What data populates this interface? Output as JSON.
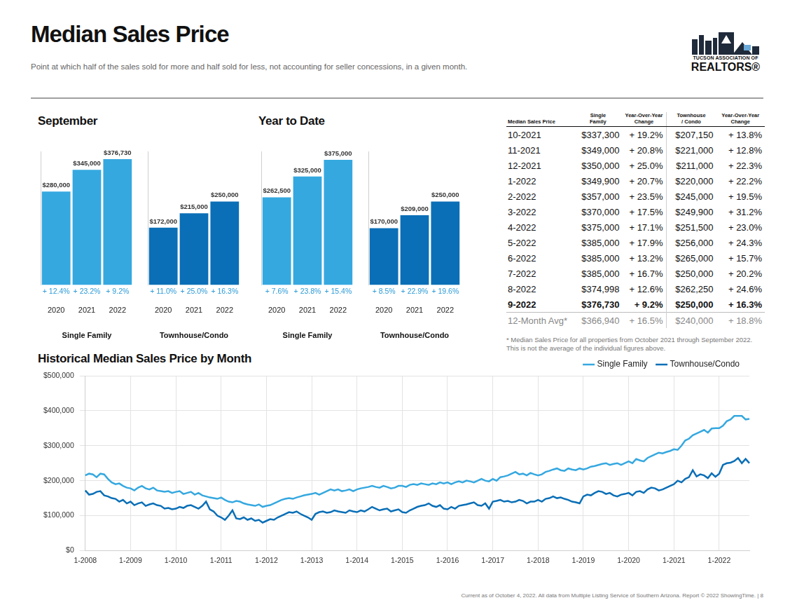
{
  "header": {
    "title": "Median Sales Price",
    "subtitle": "Point at which half of the sales sold for more and half sold for less, not accounting for seller concessions, in a given month.",
    "logo": [
      "TUCSON ASSOCIATION OF",
      "REALTORS®"
    ]
  },
  "chart_data": [
    {
      "type": "bar",
      "title": "September",
      "x_label": "Single Family",
      "categories": [
        "2020",
        "2021",
        "2022"
      ],
      "values": [
        280000,
        345000,
        376730
      ],
      "value_labels": [
        "$280,000",
        "$345,000",
        "$376,730"
      ],
      "change_labels": [
        "+ 12.4%",
        "+ 23.2%",
        "+ 9.2%"
      ],
      "color": "#35a8e0",
      "ylim": [
        0,
        400000
      ],
      "data_labels": true,
      "tick_labels": "x"
    },
    {
      "type": "bar",
      "x_label": "Townhouse/Condo",
      "categories": [
        "2020",
        "2021",
        "2022"
      ],
      "values": [
        172000,
        215000,
        250000
      ],
      "value_labels": [
        "$172,000",
        "$215,000",
        "$250,000"
      ],
      "change_labels": [
        "+ 11.0%",
        "+ 25.0%",
        "+ 16.3%"
      ],
      "color": "#0a6fb7",
      "ylim": [
        0,
        400000
      ],
      "data_labels": true,
      "tick_labels": "x"
    },
    {
      "type": "bar",
      "title": "Year to Date",
      "x_label": "Single Family",
      "categories": [
        "2020",
        "2021",
        "2022"
      ],
      "values": [
        262500,
        325000,
        375000
      ],
      "value_labels": [
        "$262,500",
        "$325,000",
        "$375,000"
      ],
      "change_labels": [
        "+ 7.6%",
        "+ 23.8%",
        "+ 15.4%"
      ],
      "color": "#35a8e0",
      "ylim": [
        0,
        400000
      ],
      "data_labels": true,
      "tick_labels": "x"
    },
    {
      "type": "bar",
      "x_label": "Townhouse/Condo",
      "categories": [
        "2020",
        "2021",
        "2022"
      ],
      "values": [
        170000,
        209000,
        250000
      ],
      "value_labels": [
        "$170,000",
        "$209,000",
        "$250,000"
      ],
      "change_labels": [
        "+ 8.5%",
        "+ 22.9%",
        "+ 19.6%"
      ],
      "color": "#0a6fb7",
      "ylim": [
        0,
        400000
      ],
      "data_labels": true,
      "tick_labels": "x"
    },
    {
      "type": "line",
      "title": "Historical Median Sales Price by Month",
      "categories": [
        "1-2008",
        null,
        null,
        null,
        null,
        null,
        null,
        null,
        null,
        null,
        null,
        null,
        "1-2009",
        null,
        null,
        null,
        null,
        null,
        null,
        null,
        null,
        null,
        null,
        null,
        "1-2010",
        null,
        null,
        null,
        null,
        null,
        null,
        null,
        null,
        null,
        null,
        null,
        "1-2011",
        null,
        null,
        null,
        null,
        null,
        null,
        null,
        null,
        null,
        null,
        null,
        "1-2012",
        null,
        null,
        null,
        null,
        null,
        null,
        null,
        null,
        null,
        null,
        null,
        "1-2013",
        null,
        null,
        null,
        null,
        null,
        null,
        null,
        null,
        null,
        null,
        null,
        "1-2014",
        null,
        null,
        null,
        null,
        null,
        null,
        null,
        null,
        null,
        null,
        null,
        "1-2015",
        null,
        null,
        null,
        null,
        null,
        null,
        null,
        null,
        null,
        null,
        null,
        "1-2016",
        null,
        null,
        null,
        null,
        null,
        null,
        null,
        null,
        null,
        null,
        null,
        "1-2017",
        null,
        null,
        null,
        null,
        null,
        null,
        null,
        null,
        null,
        null,
        null,
        "1-2018",
        null,
        null,
        null,
        null,
        null,
        null,
        null,
        null,
        null,
        null,
        null,
        "1-2019",
        null,
        null,
        null,
        null,
        null,
        null,
        null,
        null,
        null,
        null,
        null,
        "1-2020",
        null,
        null,
        null,
        null,
        null,
        null,
        null,
        null,
        null,
        null,
        null,
        "1-2021",
        null,
        null,
        null,
        null,
        null,
        null,
        null,
        null,
        null,
        null,
        null,
        "1-2022",
        null,
        null,
        null,
        null,
        null,
        null,
        null,
        null
      ],
      "series": [
        {
          "name": "Single Family",
          "color": "#35a8e0",
          "values": [
            215000,
            220000,
            218000,
            210000,
            220000,
            218000,
            205000,
            195000,
            190000,
            192000,
            185000,
            180000,
            178000,
            172000,
            180000,
            185000,
            178000,
            175000,
            180000,
            172000,
            170000,
            168000,
            170000,
            165000,
            168000,
            170000,
            162000,
            165000,
            168000,
            160000,
            165000,
            158000,
            155000,
            152000,
            150000,
            148000,
            152000,
            145000,
            140000,
            138000,
            142000,
            140000,
            135000,
            132000,
            130000,
            128000,
            132000,
            125000,
            128000,
            130000,
            135000,
            140000,
            145000,
            148000,
            150000,
            148000,
            152000,
            155000,
            158000,
            160000,
            162000,
            165000,
            160000,
            165000,
            170000,
            175000,
            172000,
            175000,
            170000,
            172000,
            175000,
            170000,
            175000,
            178000,
            180000,
            182000,
            185000,
            182000,
            180000,
            185000,
            182000,
            178000,
            180000,
            185000,
            185000,
            182000,
            188000,
            190000,
            188000,
            192000,
            190000,
            188000,
            192000,
            190000,
            195000,
            192000,
            195000,
            190000,
            195000,
            198000,
            195000,
            200000,
            198000,
            195000,
            200000,
            205000,
            200000,
            198000,
            205000,
            200000,
            210000,
            212000,
            215000,
            220000,
            225000,
            218000,
            220000,
            215000,
            222000,
            218000,
            215000,
            218000,
            225000,
            228000,
            232000,
            235000,
            230000,
            228000,
            235000,
            232000,
            230000,
            235000,
            232000,
            235000,
            240000,
            242000,
            245000,
            248000,
            250000,
            245000,
            248000,
            250000,
            245000,
            250000,
            255000,
            250000,
            262000,
            258000,
            255000,
            265000,
            270000,
            275000,
            280000,
            278000,
            282000,
            285000,
            290000,
            288000,
            300000,
            315000,
            320000,
            330000,
            335000,
            340000,
            345000,
            337300,
            349000,
            350000,
            349900,
            357000,
            370000,
            375000,
            385000,
            385000,
            385000,
            374998,
            376730
          ]
        },
        {
          "name": "Townhouse/Condo",
          "color": "#0a6fb7",
          "values": [
            172000,
            160000,
            162000,
            168000,
            170000,
            158000,
            155000,
            150000,
            148000,
            140000,
            145000,
            135000,
            140000,
            130000,
            135000,
            138000,
            128000,
            132000,
            135000,
            130000,
            128000,
            120000,
            122000,
            118000,
            120000,
            125000,
            122000,
            128000,
            130000,
            125000,
            120000,
            128000,
            140000,
            118000,
            112000,
            100000,
            95000,
            88000,
            100000,
            115000,
            92000,
            90000,
            95000,
            88000,
            92000,
            85000,
            88000,
            80000,
            85000,
            90000,
            88000,
            95000,
            100000,
            105000,
            110000,
            108000,
            112000,
            105000,
            100000,
            95000,
            88000,
            105000,
            110000,
            112000,
            108000,
            110000,
            115000,
            112000,
            110000,
            108000,
            115000,
            112000,
            110000,
            115000,
            112000,
            118000,
            125000,
            120000,
            115000,
            118000,
            120000,
            112000,
            115000,
            118000,
            110000,
            108000,
            115000,
            120000,
            125000,
            128000,
            130000,
            135000,
            128000,
            125000,
            130000,
            120000,
            118000,
            125000,
            120000,
            128000,
            130000,
            132000,
            135000,
            138000,
            130000,
            128000,
            135000,
            120000,
            140000,
            142000,
            145000,
            140000,
            142000,
            138000,
            140000,
            145000,
            142000,
            135000,
            140000,
            140000,
            145000,
            140000,
            148000,
            150000,
            155000,
            150000,
            152000,
            148000,
            145000,
            140000,
            138000,
            135000,
            155000,
            160000,
            158000,
            165000,
            170000,
            168000,
            162000,
            165000,
            158000,
            155000,
            160000,
            162000,
            165000,
            158000,
            168000,
            170000,
            165000,
            175000,
            180000,
            178000,
            172000,
            175000,
            180000,
            185000,
            190000,
            200000,
            195000,
            205000,
            210000,
            230000,
            212000,
            218000,
            215000,
            207150,
            221000,
            211000,
            220000,
            245000,
            249900,
            251500,
            256000,
            265000,
            250000,
            262250,
            250000
          ]
        }
      ],
      "ylim": [
        0,
        500000
      ],
      "yticks": [
        {
          "value": 0,
          "label": "$0"
        },
        {
          "value": 100000,
          "label": "$100,000"
        },
        {
          "value": 200000,
          "label": "$200,000"
        },
        {
          "value": 300000,
          "label": "$300,000"
        },
        {
          "value": 400000,
          "label": "$400,000"
        },
        {
          "value": 500000,
          "label": "$500,000"
        }
      ],
      "grid": true,
      "legend": "top-right"
    }
  ],
  "table": {
    "header": [
      "Median Sales Price",
      "Single Family",
      "Year-Over-Year Change",
      "Townhouse / Condo",
      "Year-Over-Year Change"
    ],
    "rows": [
      [
        "10-2021",
        "$337,300",
        "+ 19.2%",
        "$207,150",
        "+ 13.8%"
      ],
      [
        "11-2021",
        "$349,000",
        "+ 20.8%",
        "$221,000",
        "+ 12.8%"
      ],
      [
        "12-2021",
        "$350,000",
        "+ 25.0%",
        "$211,000",
        "+ 22.3%"
      ],
      [
        "1-2022",
        "$349,900",
        "+ 20.7%",
        "$220,000",
        "+ 22.2%"
      ],
      [
        "2-2022",
        "$357,000",
        "+ 23.5%",
        "$245,000",
        "+ 19.5%"
      ],
      [
        "3-2022",
        "$370,000",
        "+ 17.5%",
        "$249,900",
        "+ 31.2%"
      ],
      [
        "4-2022",
        "$375,000",
        "+ 17.1%",
        "$251,500",
        "+ 23.0%"
      ],
      [
        "5-2022",
        "$385,000",
        "+ 17.9%",
        "$256,000",
        "+ 24.3%"
      ],
      [
        "6-2022",
        "$385,000",
        "+ 13.2%",
        "$265,000",
        "+ 15.7%"
      ],
      [
        "7-2022",
        "$385,000",
        "+ 16.7%",
        "$250,000",
        "+ 20.2%"
      ],
      [
        "8-2022",
        "$374,998",
        "+ 12.6%",
        "$262,250",
        "+ 24.6%"
      ],
      [
        "9-2022",
        "$376,730",
        "+ 9.2%",
        "$250,000",
        "+ 16.3%"
      ]
    ],
    "summary": [
      "12-Month Avg*",
      "$366,940",
      "+ 16.5%",
      "$240,000",
      "+ 18.8%"
    ],
    "note": "* Median Sales Price for all properties from October 2021 through September 2022. This is not the average of the individual figures above."
  },
  "footer": "Current as of October 4, 2022. All data from Multiple Listing Service of Southern Arizona. Report © 2022 ShowingTime.  |  8"
}
